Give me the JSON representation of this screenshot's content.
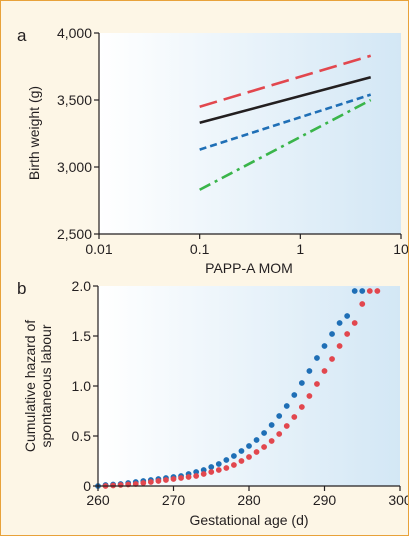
{
  "colors": {
    "panel_background": "#fdf6e6",
    "border": "#e8a23a",
    "plot_gradient_start": "#ffffff",
    "plot_gradient_end": "#d3e7f5",
    "red": "#e2474e",
    "black": "#231f20",
    "blue": "#1f6fb6",
    "green": "#3ab54a"
  },
  "chart_data": [
    {
      "panel_label": "a",
      "type": "line",
      "xlabel": "PAPP-A MOM",
      "ylabel": "Birth weight (g)",
      "x_scale": "log",
      "xlim": [
        0.01,
        10
      ],
      "ylim": [
        2500,
        4000
      ],
      "x_ticks": [
        0.01,
        0.1,
        1,
        10
      ],
      "x_tick_labels": [
        "0.01",
        "0.1",
        "1",
        "10"
      ],
      "y_ticks": [
        2500,
        3000,
        3500,
        4000
      ],
      "y_tick_labels": [
        "2,500",
        "3,000",
        "3,500",
        "4,000"
      ],
      "grid": false,
      "series": [
        {
          "color": "#e2474e",
          "style": "long-dash",
          "x": [
            0.1,
            5
          ],
          "y": [
            3450,
            3830
          ]
        },
        {
          "color": "#231f20",
          "style": "solid",
          "x": [
            0.1,
            5
          ],
          "y": [
            3330,
            3670
          ]
        },
        {
          "color": "#1f6fb6",
          "style": "short-dash",
          "x": [
            0.1,
            5
          ],
          "y": [
            3130,
            3540
          ]
        },
        {
          "color": "#3ab54a",
          "style": "dash-dot",
          "x": [
            0.1,
            5
          ],
          "y": [
            2830,
            3500
          ]
        }
      ]
    },
    {
      "panel_label": "b",
      "type": "scatter",
      "xlabel": "Gestational age (d)",
      "ylabel": "Cumulative hazard of spontaneous labour",
      "ylabel_lines": [
        "Cumulative hazard of",
        "spontaneous labour"
      ],
      "xlim": [
        260,
        300
      ],
      "ylim": [
        0,
        2.0
      ],
      "x_ticks": [
        260,
        270,
        280,
        290,
        300
      ],
      "x_tick_labels": [
        "260",
        "270",
        "280",
        "290",
        "300"
      ],
      "y_ticks": [
        0,
        0.5,
        1.0,
        1.5,
        2.0
      ],
      "y_tick_labels": [
        "0",
        "0.5",
        "1.0",
        "1.5",
        "2.0"
      ],
      "grid": false,
      "series": [
        {
          "color": "#1f6fb6",
          "x": [
            260,
            261,
            262,
            263,
            264,
            265,
            266,
            267,
            268,
            269,
            270,
            271,
            272,
            273,
            274,
            275,
            276,
            277,
            278,
            279,
            280,
            281,
            282,
            283,
            284,
            285,
            286,
            287,
            288,
            289,
            290,
            291,
            292,
            293,
            294,
            295
          ],
          "y": [
            0.0,
            0.01,
            0.015,
            0.02,
            0.03,
            0.04,
            0.05,
            0.06,
            0.07,
            0.08,
            0.09,
            0.1,
            0.12,
            0.14,
            0.16,
            0.19,
            0.22,
            0.26,
            0.3,
            0.35,
            0.4,
            0.46,
            0.53,
            0.61,
            0.7,
            0.8,
            0.91,
            1.03,
            1.15,
            1.28,
            1.4,
            1.52,
            1.63,
            1.7,
            1.95,
            1.95
          ]
        },
        {
          "color": "#e2474e",
          "x": [
            261,
            262,
            263,
            264,
            265,
            266,
            267,
            268,
            269,
            270,
            271,
            272,
            273,
            274,
            275,
            276,
            277,
            278,
            279,
            280,
            281,
            282,
            283,
            284,
            285,
            286,
            287,
            288,
            289,
            290,
            291,
            292,
            293,
            294,
            295,
            296,
            297
          ],
          "y": [
            0.0,
            0.005,
            0.01,
            0.015,
            0.02,
            0.03,
            0.04,
            0.05,
            0.06,
            0.07,
            0.08,
            0.09,
            0.1,
            0.12,
            0.14,
            0.16,
            0.18,
            0.21,
            0.25,
            0.29,
            0.34,
            0.39,
            0.45,
            0.52,
            0.6,
            0.69,
            0.79,
            0.9,
            1.02,
            1.15,
            1.27,
            1.4,
            1.52,
            1.63,
            1.82,
            1.95,
            1.95
          ]
        }
      ]
    }
  ]
}
